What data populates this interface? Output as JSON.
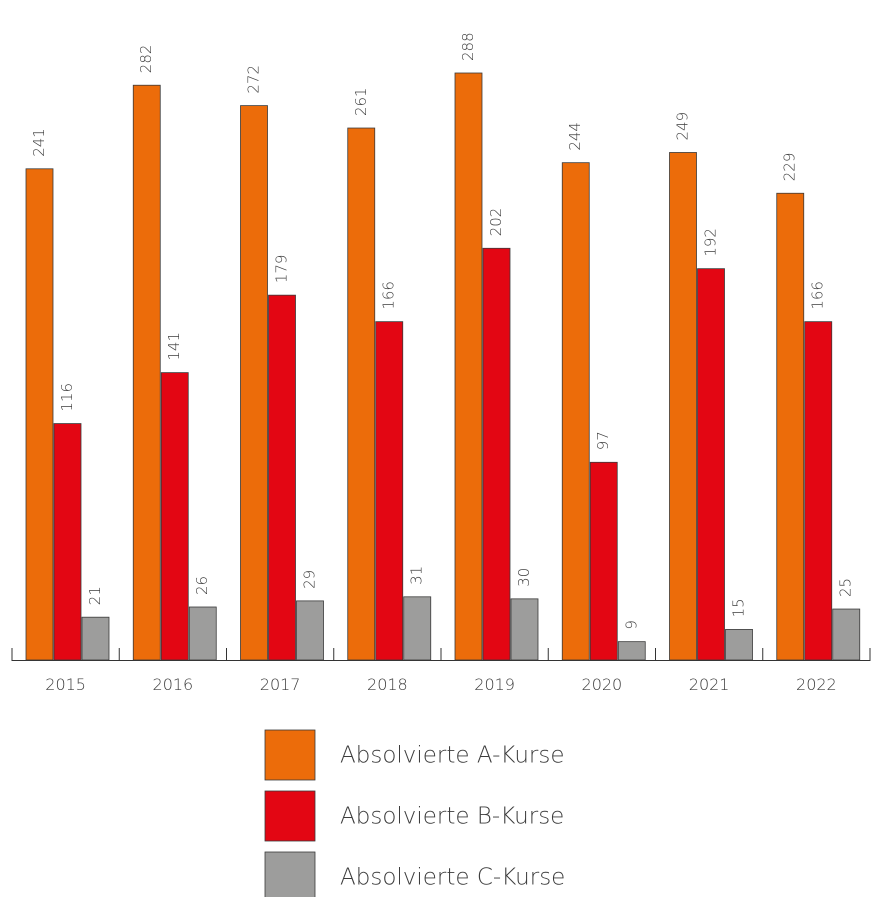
{
  "chart_data": {
    "type": "bar",
    "categories": [
      "2015",
      "2016",
      "2017",
      "2018",
      "2019",
      "2020",
      "2021",
      "2022"
    ],
    "series": [
      {
        "name": "Absolvierte A-Kurse",
        "color": "#ec6c0a",
        "values": [
          241,
          282,
          272,
          261,
          288,
          244,
          249,
          229
        ]
      },
      {
        "name": "Absolvierte B-Kurse",
        "color": "#e30613",
        "values": [
          116,
          141,
          179,
          166,
          202,
          97,
          192,
          166
        ]
      },
      {
        "name": "Absolvierte C-Kurse",
        "color": "#9d9d9c",
        "values": [
          21,
          26,
          29,
          31,
          30,
          9,
          15,
          25
        ]
      }
    ]
  }
}
